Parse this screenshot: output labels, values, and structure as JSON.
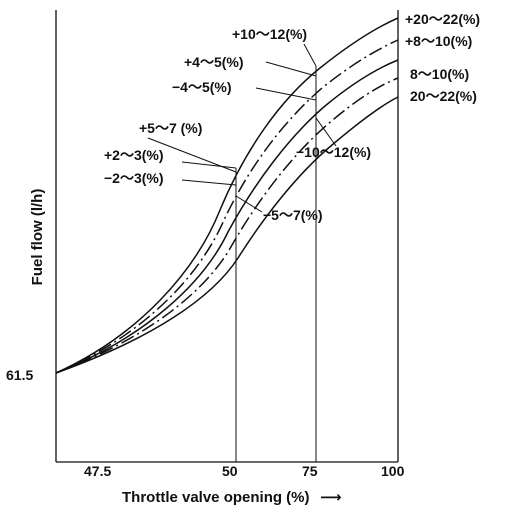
{
  "chart_data": {
    "type": "line",
    "title": "",
    "xlabel": "Throttle valve opening (%)",
    "ylabel": "Fuel flow (l/h)",
    "x_ticks": [
      "47.5",
      "50",
      "75",
      "100"
    ],
    "y_ticks": [
      "61.5"
    ],
    "vertical_guides_at": [
      "50",
      "75"
    ],
    "grid": false,
    "annotations": [
      "+20～22(%)",
      "+8～10(%)",
      "8～10(%)",
      "20～22(%)",
      "+10～12(%)",
      "+4～5(%)",
      "−4～5(%)",
      "−10～12(%)",
      "+5～7 (%)",
      "+2～3(%)",
      "−2～3(%)",
      "−5～7(%)"
    ],
    "series": [
      {
        "name": "+20～22(%)",
        "values_rel_pct": {
          "50": 6,
          "75": 11,
          "100": 21
        }
      },
      {
        "name": "+8～10(%)",
        "values_rel_pct": {
          "50": 2.5,
          "75": 4.5,
          "100": 9
        }
      },
      {
        "name": "8～10(%)",
        "values_rel_pct": {
          "50": -2.5,
          "75": -4.5,
          "100": -9
        }
      },
      {
        "name": "20～22(%)",
        "values_rel_pct": {
          "50": -6,
          "75": -11,
          "100": -21
        }
      }
    ],
    "arrow_glyph": "⟶"
  }
}
